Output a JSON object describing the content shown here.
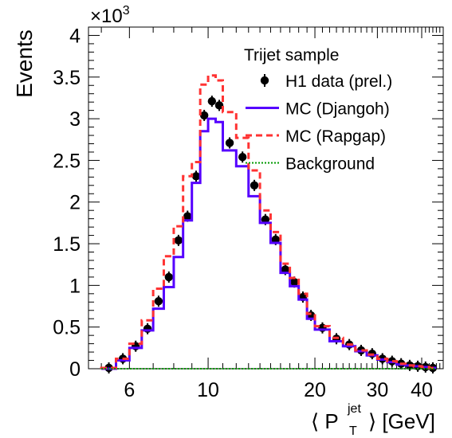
{
  "chart_data": {
    "type": "line",
    "xlabel": "⟨ P",
    "xlabel_sub": "T",
    "xlabel_sup": "jet",
    "xlabel_tail": "⟩ [GeV]",
    "ylabel": "Events",
    "y_multiplier": "×10",
    "y_multiplier_exp": "3",
    "x_scale": "log",
    "xlim": [
      4.6,
      46
    ],
    "ylim": [
      0,
      4.1
    ],
    "x_ticks": [
      6,
      10,
      20,
      30,
      40
    ],
    "y_ticks": [
      0,
      0.5,
      1,
      1.5,
      2,
      2.5,
      3,
      3.5,
      4
    ],
    "legend_title": "Trijet sample",
    "legend_position": "top-right",
    "bin_edges": [
      5,
      5.5,
      6,
      6.5,
      7,
      7.5,
      8,
      8.5,
      9,
      9.5,
      10,
      10.5,
      11,
      12,
      13,
      14,
      15,
      16,
      17,
      18,
      19,
      20,
      22,
      24,
      26,
      28,
      30,
      32,
      34,
      36,
      38,
      40,
      42,
      44
    ],
    "series": [
      {
        "name": "H1 data (prel.)",
        "style": "points",
        "color": "#000000",
        "x": [
          5.25,
          5.75,
          6.25,
          6.75,
          7.25,
          7.75,
          8.25,
          8.75,
          9.25,
          9.75,
          10.25,
          10.75,
          11.5,
          12.5,
          13.5,
          14.5,
          15.5,
          16.5,
          17.5,
          18.5,
          19.5,
          21,
          23,
          25,
          27,
          29,
          31,
          33,
          35,
          37,
          39,
          41,
          43
        ],
        "values": [
          0.01,
          0.12,
          0.27,
          0.48,
          0.81,
          1.1,
          1.54,
          1.83,
          2.31,
          3.04,
          3.21,
          3.16,
          2.71,
          2.54,
          2.2,
          1.79,
          1.55,
          1.19,
          1.04,
          0.86,
          0.64,
          0.49,
          0.36,
          0.29,
          0.22,
          0.18,
          0.12,
          0.09,
          0.06,
          0.04,
          0.03,
          0.02,
          0.01
        ]
      },
      {
        "name": "MC (Djangoh)",
        "style": "step-solid",
        "color": "#5500ff",
        "values": [
          0.0,
          0.1,
          0.25,
          0.46,
          0.72,
          0.98,
          1.34,
          1.78,
          2.23,
          2.85,
          3.0,
          2.96,
          2.62,
          2.43,
          2.07,
          1.75,
          1.51,
          1.15,
          0.99,
          0.83,
          0.6,
          0.47,
          0.33,
          0.27,
          0.21,
          0.16,
          0.11,
          0.08,
          0.05,
          0.04,
          0.03,
          0.02,
          0.01
        ]
      },
      {
        "name": "MC (Rapgap)",
        "style": "step-dashed",
        "color": "#ff3333",
        "values": [
          0.01,
          0.12,
          0.3,
          0.58,
          0.96,
          1.35,
          1.71,
          2.31,
          2.48,
          3.41,
          3.52,
          3.46,
          3.08,
          2.77,
          2.38,
          1.9,
          1.64,
          1.26,
          1.09,
          0.9,
          0.66,
          0.51,
          0.37,
          0.29,
          0.22,
          0.17,
          0.12,
          0.09,
          0.06,
          0.04,
          0.03,
          0.02,
          0.01
        ]
      },
      {
        "name": "Background",
        "style": "step-dotted",
        "color": "#009900",
        "values": [
          0,
          0,
          0,
          0,
          0,
          0,
          0,
          0,
          0,
          0,
          0,
          0,
          0,
          0,
          0,
          0,
          0,
          0,
          0,
          0,
          0,
          0,
          0,
          0,
          0,
          0,
          0,
          0,
          0,
          0,
          0,
          0,
          0
        ]
      }
    ]
  }
}
